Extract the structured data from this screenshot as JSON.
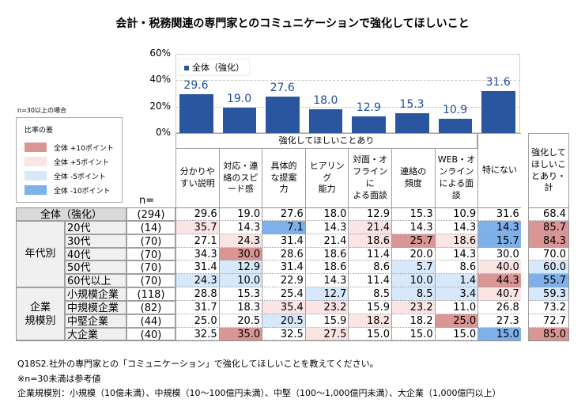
{
  "title": "会計・税務関連の専門家とのコミュニケーションで強化してほしいこと",
  "n_note": "n=30以上の場合",
  "legend": {
    "title": "比率の差",
    "items": [
      {
        "label": "全体 +10ポイント",
        "color": "#d99694"
      },
      {
        "label": "全体 +5ポイント",
        "color": "#fbe4e4"
      },
      {
        "label": "全体 -5ポイント",
        "color": "#d6e8fa"
      },
      {
        "label": "全体 -10ポイント",
        "color": "#7eb0ea"
      }
    ]
  },
  "n_header": "n=",
  "group_header": "強化してほしいことあり",
  "columns": [
    "分かりやすい説明",
    "対応・連絡のスピード感",
    "具体的な提案力",
    "ヒアリング能力",
    "対面・オフラインによる面談",
    "連絡の頻度",
    "WEB・オンラインによる面談",
    "特にない"
  ],
  "column_lines": [
    [
      "分かりや",
      "すい説明"
    ],
    [
      "対応・連",
      "絡のスピ",
      "ード感"
    ],
    [
      "具体的",
      "な提案",
      "力"
    ],
    [
      "ヒアリング",
      "能力"
    ],
    [
      "対面・オ",
      "フラインに",
      "よる面談"
    ],
    [
      "連絡の",
      "頻度"
    ],
    [
      "WEB・オ",
      "ンライン",
      "による面",
      "談"
    ],
    [
      "特にない"
    ]
  ],
  "total_header_lines": [
    "強化して",
    "ほしいこ",
    "とあり・計"
  ],
  "chart_data": {
    "type": "bar",
    "categories": [
      "分かりやすい説明",
      "対応・連絡のスピード感",
      "具体的な提案力",
      "ヒアリング能力",
      "対面・オフラインによる面談",
      "連絡の頻度",
      "WEB・オンラインによる面談",
      "特にない"
    ],
    "series": [
      {
        "name": "全体（強化）",
        "values": [
          29.6,
          19.0,
          27.6,
          18.0,
          12.9,
          15.3,
          10.9,
          31.6
        ],
        "color": "#2a56a0"
      }
    ],
    "yticks": [
      "0%",
      "20%",
      "40%",
      "60%"
    ],
    "ylim": [
      0,
      60
    ],
    "grid": true,
    "legend": "top-left"
  },
  "table": {
    "rows": [
      {
        "group": "全体（強化）",
        "label": "",
        "n": "(294)",
        "values": [
          29.6,
          19.0,
          27.6,
          18.0,
          12.9,
          15.3,
          10.9,
          31.6
        ],
        "total": 68.4
      },
      {
        "group": "年代別",
        "label": "20代",
        "n": "(14)",
        "values": [
          35.7,
          14.3,
          7.1,
          14.3,
          21.4,
          14.3,
          14.3,
          14.3
        ],
        "total": 85.7
      },
      {
        "group": "年代別",
        "label": "30代",
        "n": "(70)",
        "values": [
          27.1,
          24.3,
          31.4,
          21.4,
          18.6,
          25.7,
          18.6,
          15.7
        ],
        "total": 84.3
      },
      {
        "group": "年代別",
        "label": "40代",
        "n": "(70)",
        "values": [
          34.3,
          30.0,
          28.6,
          18.6,
          11.4,
          20.0,
          14.3,
          30.0
        ],
        "total": 70.0
      },
      {
        "group": "年代別",
        "label": "50代",
        "n": "(70)",
        "values": [
          31.4,
          12.9,
          31.4,
          18.6,
          8.6,
          5.7,
          8.6,
          40.0
        ],
        "total": 60.0
      },
      {
        "group": "年代別",
        "label": "60代以上",
        "n": "(70)",
        "values": [
          24.3,
          10.0,
          22.9,
          14.3,
          11.4,
          10.0,
          1.4,
          44.3
        ],
        "total": 55.7
      },
      {
        "group": "企業規模別",
        "label": "小規模企業",
        "n": "(118)",
        "values": [
          28.8,
          15.3,
          25.4,
          12.7,
          8.5,
          8.5,
          3.4,
          40.7
        ],
        "total": 59.3
      },
      {
        "group": "企業規模別",
        "label": "中規模企業",
        "n": "(82)",
        "values": [
          31.7,
          18.3,
          35.4,
          23.2,
          15.9,
          23.2,
          11.0,
          26.8
        ],
        "total": 73.2
      },
      {
        "group": "企業規模別",
        "label": "中堅企業",
        "n": "(44)",
        "values": [
          25.0,
          20.5,
          20.5,
          15.9,
          18.2,
          18.2,
          25.0,
          27.3
        ],
        "total": 72.7
      },
      {
        "group": "企業規模別",
        "label": "大企業",
        "n": "(40)",
        "values": [
          32.5,
          35.0,
          32.5,
          27.5,
          15.0,
          15.0,
          15.0,
          15.0
        ],
        "total": 85.0
      }
    ],
    "group_labels": [
      [
        "年代別"
      ],
      [
        "企業",
        "規模別"
      ]
    ]
  },
  "notes": [
    "Q18S2.社外の専門家との「コミュニケーション」で強化してほしいことを教えてください。",
    "※n=30未満は参考値",
    "企業規模別：小規模（10億未満）、中規模（10～100億円未満）、中堅（100～1,000億円未満）、大企業（1,000億円以上）"
  ]
}
